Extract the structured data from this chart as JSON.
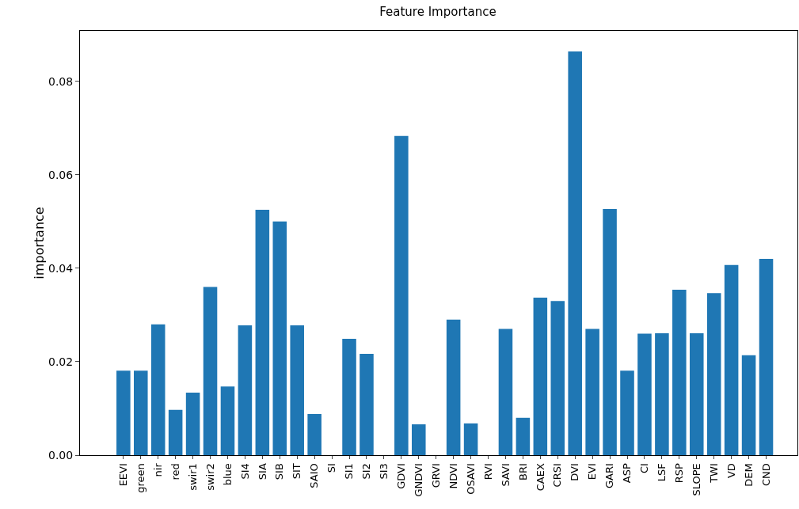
{
  "chart_data": {
    "type": "bar",
    "title": "Feature Importance",
    "ylabel": "importance",
    "categories": [
      "EEVI",
      "green",
      "nir",
      "red",
      "swir1",
      "swir2",
      "blue",
      "SI4",
      "SIA",
      "SIB",
      "SIT",
      "SAIO",
      "SI",
      "SI1",
      "SI2",
      "SI3",
      "GDVI",
      "GNDVI",
      "GRVI",
      "NDVI",
      "OSAVI",
      "RVI",
      "SAVI",
      "BRI",
      "CAEX",
      "CRSI",
      "DVI",
      "EVI",
      "GARI",
      "ASP",
      "CI",
      "LSF",
      "RSP",
      "SLOPE",
      "TWI",
      "VD",
      "DEM",
      "CND"
    ],
    "values": [
      0.0181,
      0.0181,
      0.028,
      0.0097,
      0.0134,
      0.036,
      0.0147,
      0.0278,
      0.0525,
      0.05,
      0.0278,
      0.0088,
      0,
      0.0249,
      0.0217,
      0,
      0.0683,
      0.0066,
      0,
      0.029,
      0.0068,
      0,
      0.027,
      0.008,
      0.0337,
      0.033,
      0.0864,
      0.027,
      0.0527,
      0.0181,
      0.026,
      0.0261,
      0.0354,
      0.0261,
      0.0347,
      0.0407,
      0.0214,
      0.042
    ],
    "color": "#1f77b4",
    "ylim": [
      0,
      0.0908
    ],
    "yticks": [
      {
        "value": 0,
        "label": "0.00"
      },
      {
        "value": 0.02,
        "label": "0.02"
      },
      {
        "value": 0.04,
        "label": "0.04"
      },
      {
        "value": 0.06,
        "label": "0.06"
      },
      {
        "value": 0.08,
        "label": "0.08"
      }
    ],
    "grid": false,
    "legend": false
  }
}
